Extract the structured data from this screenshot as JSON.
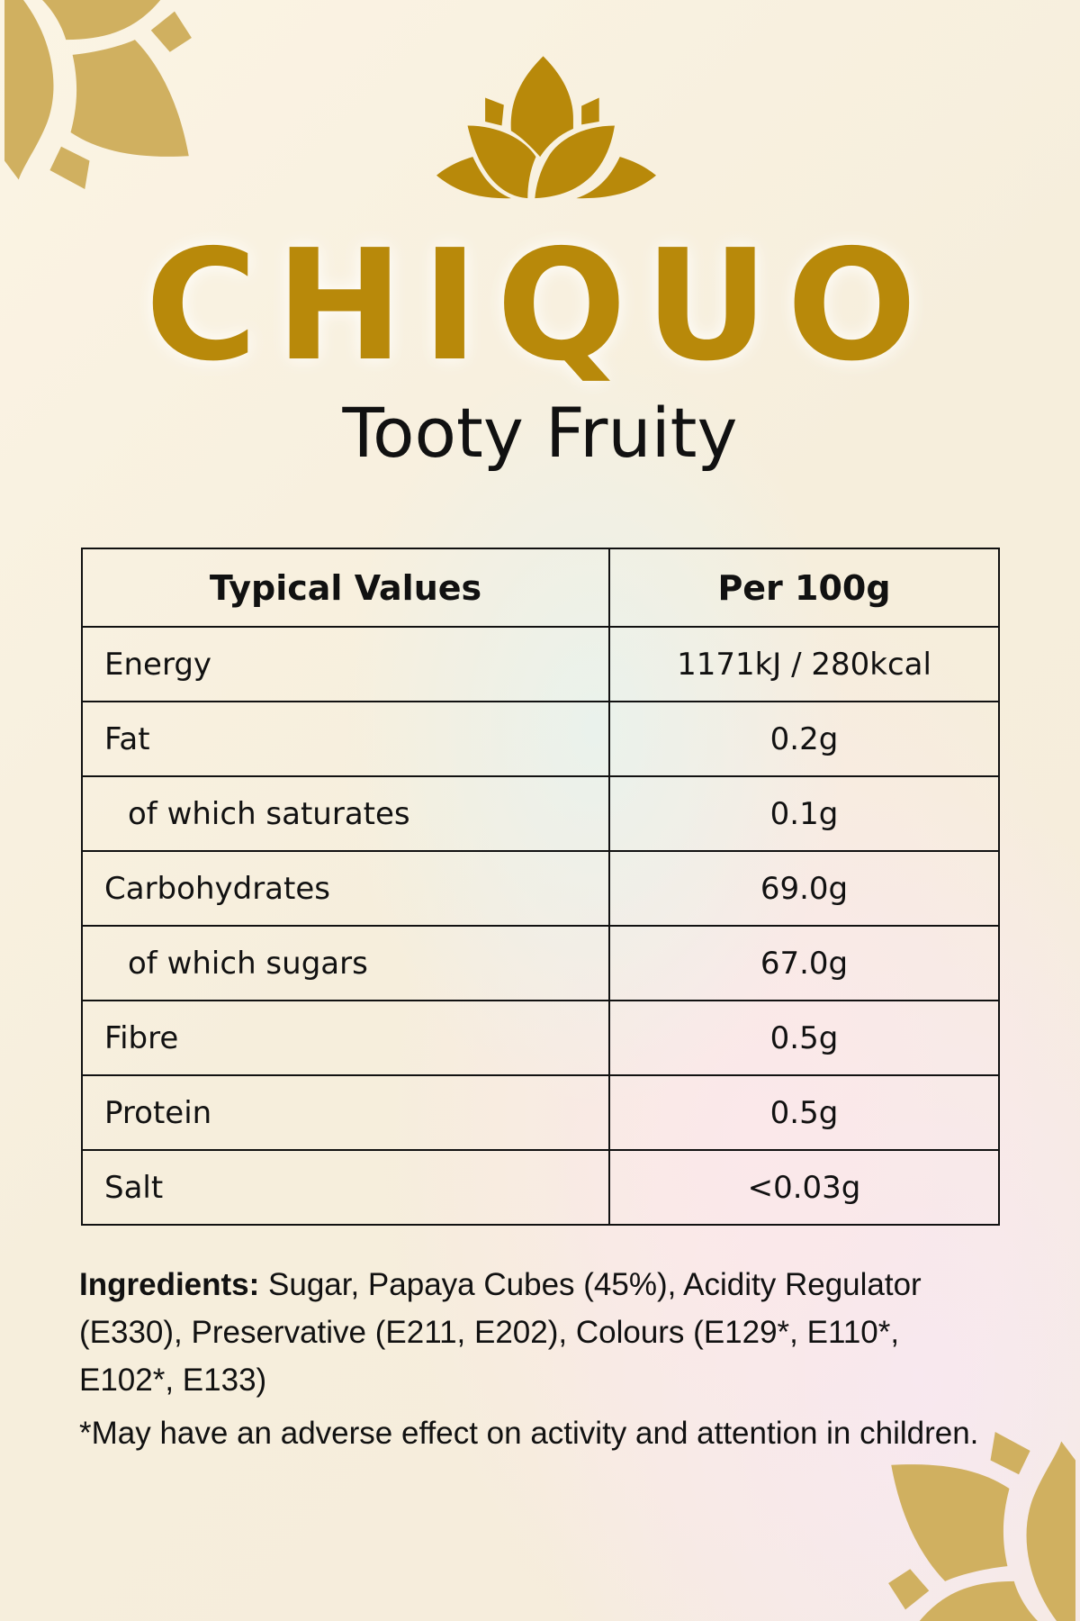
{
  "brand": {
    "name": "CHIQUO",
    "product": "Tooty Fruity",
    "color": "#b8890a",
    "icon": "lotus-icon"
  },
  "table": {
    "headers": [
      "Typical Values",
      "Per 100g"
    ],
    "rows": [
      {
        "label": "Energy",
        "value": "1171kJ / 280kcal",
        "indent": false
      },
      {
        "label": "Fat",
        "value": "0.2g",
        "indent": false
      },
      {
        "label": "of which saturates",
        "value": "0.1g",
        "indent": true
      },
      {
        "label": "Carbohydrates",
        "value": "69.0g",
        "indent": false
      },
      {
        "label": "of which sugars",
        "value": "67.0g",
        "indent": true
      },
      {
        "label": "Fibre",
        "value": "0.5g",
        "indent": false
      },
      {
        "label": "Protein",
        "value": "0.5g",
        "indent": false
      },
      {
        "label": "Salt",
        "value": "<0.03g",
        "indent": false
      }
    ]
  },
  "ingredients": {
    "label": "Ingredients:",
    "text": " Sugar, Papaya Cubes (45%), Acidity Regulator (E330), Preservative (E211, E202), Colours (E129*, E110*, E102*, E133)"
  },
  "footnote": "*May have an adverse effect on activity and attention in children."
}
